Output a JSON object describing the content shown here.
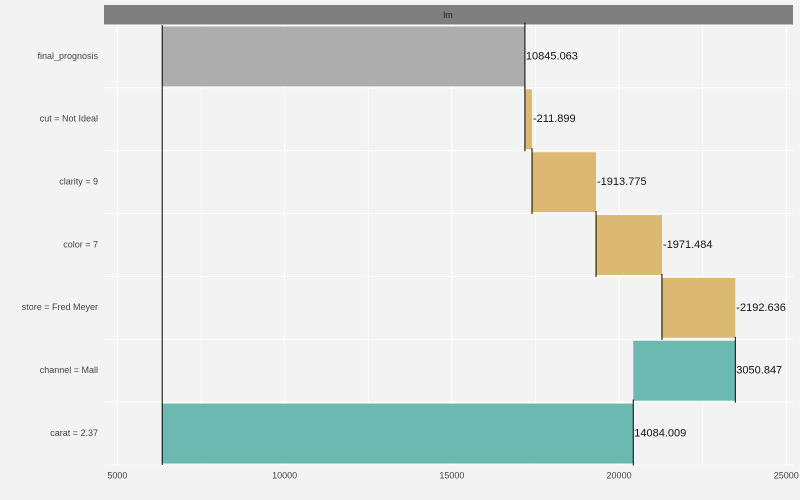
{
  "chart_data": {
    "type": "waterfall",
    "facet_label": "lm",
    "categories": [
      "final_prognosis",
      "cut = Not Ideal",
      "clarity = 9",
      "color = 7",
      "store = Fred Meyer",
      "channel = Mall",
      "carat = 2.37"
    ],
    "values": [
      10845.063,
      -211.899,
      -1913.775,
      -1971.484,
      -2192.636,
      3050.847,
      14084.009
    ],
    "intercept": 6340,
    "colors": {
      "positive": "#6cb9b1",
      "negative": "#dbb972",
      "total": "#adadad"
    },
    "xlim": [
      4600,
      25200
    ],
    "xticks": [
      5000,
      10000,
      15000,
      20000,
      25000
    ],
    "grid": true
  }
}
